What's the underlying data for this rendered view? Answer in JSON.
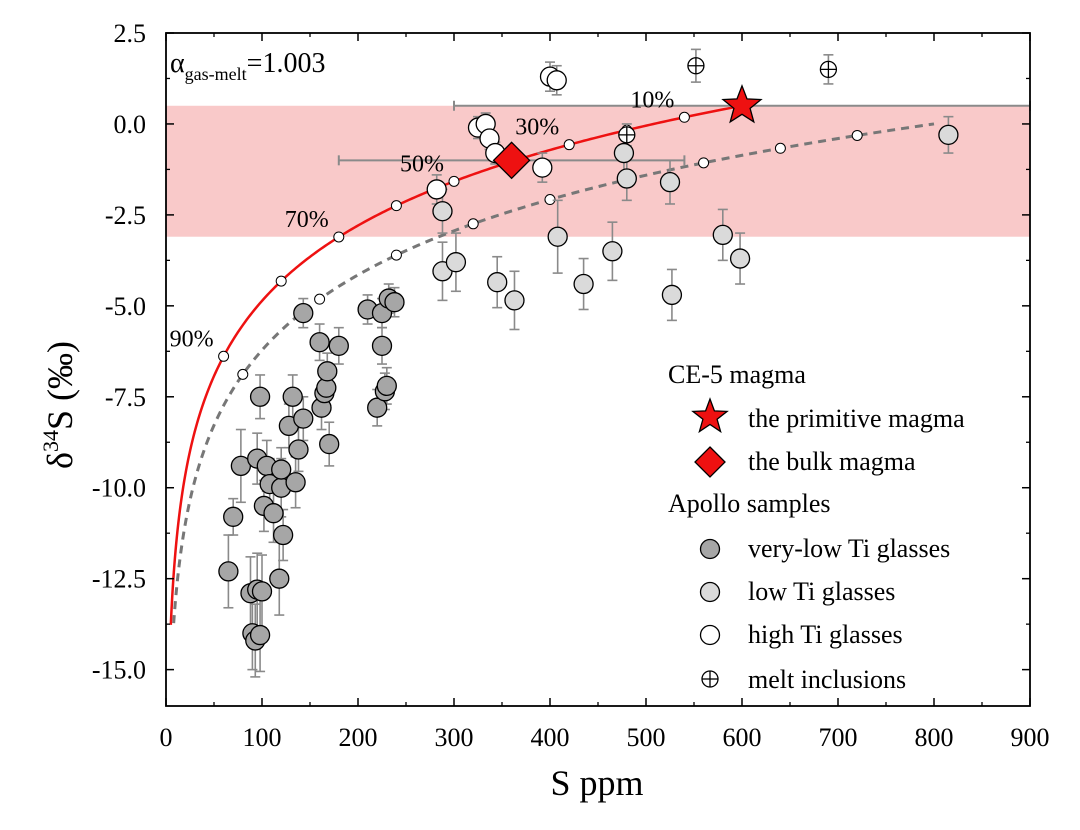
{
  "chart_data": {
    "type": "scatter",
    "xlabel": "S ppm",
    "ylabel": "δ34S (‰)",
    "ylabel_base": "δ",
    "ylabel_sup": "34",
    "ylabel_rest": "S (‰)",
    "xlim": [
      0,
      900
    ],
    "ylim": [
      -16,
      2.5
    ],
    "xticks": [
      0,
      100,
      200,
      300,
      400,
      500,
      600,
      700,
      800,
      900
    ],
    "xtick_labels": [
      "0",
      "100",
      "200",
      "300",
      "400",
      "500",
      "600",
      "700",
      "800",
      "900"
    ],
    "yticks": [
      2.5,
      0,
      -2.5,
      -5,
      -7.5,
      -10,
      -12.5,
      -15
    ],
    "ytick_labels": [
      "2.5",
      "0.0",
      "-2.5",
      "-5.0",
      "-7.5",
      "-10.0",
      "-12.5",
      "-15.0"
    ],
    "grid": false,
    "annotation": {
      "alpha": "α",
      "sub": "gas-melt",
      "value": "=1.003"
    },
    "band": {
      "y_min": -3.1,
      "y_max": 0.5,
      "color": "#f9c9c9"
    },
    "colors": {
      "red_curve": "#ee1111",
      "dashed_curve": "#777777",
      "errorbar": "#8a8a8a",
      "very_low_ti": "#a6a6a6",
      "low_ti": "#dadada",
      "high_ti": "#ffffff",
      "marker_red": "#ee1111"
    },
    "red_curve": {
      "s0": 600,
      "d0": 0.5,
      "alpha": 1.003,
      "fractions": [
        0.1,
        0.2,
        0.3,
        0.4,
        0.5,
        0.6,
        0.7,
        0.8,
        0.9
      ],
      "fraction_labels": [
        "10%",
        "30%",
        "50%",
        "70%",
        "90%"
      ],
      "fraction_label_values": [
        0.1,
        0.3,
        0.5,
        0.7,
        0.9
      ]
    },
    "dashed_curve": {
      "s0": 800,
      "d0": 0.0,
      "alpha": 1.003,
      "fractions": [
        0.1,
        0.2,
        0.3,
        0.4,
        0.5,
        0.6,
        0.7,
        0.8,
        0.9
      ]
    },
    "series": [
      {
        "name": "very-low Ti glasses",
        "points": [
          {
            "x": 65,
            "y": -12.3,
            "err": 1.0
          },
          {
            "x": 70,
            "y": -10.8,
            "err": 0.5
          },
          {
            "x": 78,
            "y": -9.4,
            "err": 1.0
          },
          {
            "x": 88,
            "y": -12.9,
            "err": 1.0
          },
          {
            "x": 90,
            "y": -14.0,
            "err": 1.0
          },
          {
            "x": 93,
            "y": -14.2,
            "err": 1.0
          },
          {
            "x": 95,
            "y": -12.8,
            "err": 1.0
          },
          {
            "x": 95,
            "y": -9.2,
            "err": 0.7
          },
          {
            "x": 98,
            "y": -14.05,
            "err": 1.0
          },
          {
            "x": 98,
            "y": -7.5,
            "err": 0.6
          },
          {
            "x": 100,
            "y": -12.85,
            "err": 1.0
          },
          {
            "x": 102,
            "y": -10.5,
            "err": 0.7
          },
          {
            "x": 105,
            "y": -9.4,
            "err": 0.7
          },
          {
            "x": 108,
            "y": -9.9,
            "err": 0.7
          },
          {
            "x": 112,
            "y": -10.7,
            "err": 0.8
          },
          {
            "x": 118,
            "y": -12.5,
            "err": 1.0
          },
          {
            "x": 120,
            "y": -10.0,
            "err": 0.8
          },
          {
            "x": 120,
            "y": -9.5,
            "err": 0.6
          },
          {
            "x": 122,
            "y": -11.3,
            "err": 0.7
          },
          {
            "x": 128,
            "y": -8.3,
            "err": 0.6
          },
          {
            "x": 132,
            "y": -7.5,
            "err": 0.6
          },
          {
            "x": 135,
            "y": -9.85,
            "err": 0.7
          },
          {
            "x": 138,
            "y": -8.95,
            "err": 0.6
          },
          {
            "x": 143,
            "y": -8.1,
            "err": 0.6
          },
          {
            "x": 143,
            "y": -5.2,
            "err": 0.4
          },
          {
            "x": 160,
            "y": -6.0,
            "err": 0.5
          },
          {
            "x": 162,
            "y": -7.8,
            "err": 0.6
          },
          {
            "x": 165,
            "y": -7.4,
            "err": 0.5
          },
          {
            "x": 167,
            "y": -7.25,
            "err": 0.5
          },
          {
            "x": 168,
            "y": -6.8,
            "err": 0.5
          },
          {
            "x": 170,
            "y": -8.8,
            "err": 0.6
          },
          {
            "x": 180,
            "y": -6.1,
            "err": 0.5
          },
          {
            "x": 210,
            "y": -5.1,
            "err": 0.4
          },
          {
            "x": 220,
            "y": -7.8,
            "err": 0.5
          },
          {
            "x": 225,
            "y": -6.1,
            "err": 0.5
          },
          {
            "x": 225,
            "y": -5.2,
            "err": 0.4
          },
          {
            "x": 228,
            "y": -7.35,
            "err": 0.5
          },
          {
            "x": 230,
            "y": -7.2,
            "err": 0.5
          },
          {
            "x": 232,
            "y": -4.8,
            "err": 0.4
          },
          {
            "x": 238,
            "y": -4.9,
            "err": 0.4
          }
        ]
      },
      {
        "name": "low Ti glasses",
        "points": [
          {
            "x": 288,
            "y": -2.4,
            "err": 0.6
          },
          {
            "x": 288,
            "y": -4.05,
            "err": 0.8
          },
          {
            "x": 302,
            "y": -3.8,
            "err": 0.8
          },
          {
            "x": 345,
            "y": -4.35,
            "err": 0.7
          },
          {
            "x": 363,
            "y": -4.85,
            "err": 0.8
          },
          {
            "x": 408,
            "y": -3.1,
            "err": 1.0
          },
          {
            "x": 435,
            "y": -4.4,
            "err": 0.7
          },
          {
            "x": 465,
            "y": -3.5,
            "err": 0.8
          },
          {
            "x": 477,
            "y": -0.8,
            "err": 0.6
          },
          {
            "x": 480,
            "y": -1.5,
            "err": 0.6
          },
          {
            "x": 525,
            "y": -1.6,
            "err": 0.6
          },
          {
            "x": 527,
            "y": -4.7,
            "err": 0.7
          },
          {
            "x": 580,
            "y": -3.05,
            "err": 0.7
          },
          {
            "x": 598,
            "y": -3.7,
            "err": 0.7
          },
          {
            "x": 815,
            "y": -0.3,
            "err": 0.5
          }
        ]
      },
      {
        "name": "high Ti glasses",
        "points": [
          {
            "x": 282,
            "y": -1.8,
            "err": 0.4
          },
          {
            "x": 325,
            "y": -0.1,
            "err": 0.3
          },
          {
            "x": 333,
            "y": 0.0,
            "err": 0.3
          },
          {
            "x": 337,
            "y": -0.4,
            "err": 0.3
          },
          {
            "x": 343,
            "y": -0.8,
            "err": 0.3
          },
          {
            "x": 392,
            "y": -1.2,
            "err": 0.4
          },
          {
            "x": 400,
            "y": 1.3,
            "err": 0.4
          },
          {
            "x": 407,
            "y": 1.2,
            "err": 0.4
          }
        ]
      },
      {
        "name": "melt inclusions",
        "points": [
          {
            "x": 480,
            "y": -0.3,
            "err": 0.3
          },
          {
            "x": 552,
            "y": 1.6,
            "err": 0.45
          },
          {
            "x": 690,
            "y": 1.5,
            "err": 0.4
          }
        ]
      }
    ],
    "primitive": {
      "x": 600,
      "y": 0.5,
      "xerr": [
        300,
        900
      ]
    },
    "bulk": {
      "x": 360,
      "y": -1.0,
      "xerr": [
        180,
        540
      ]
    },
    "legend": {
      "position": "bottom-right",
      "group1": "CE-5 magma",
      "star": "the primitive magma",
      "diamond": "the bulk magma",
      "group2": "Apollo samples",
      "very_low": "very-low Ti glasses",
      "low": "low Ti glasses",
      "high": "high Ti glasses",
      "inclusions": "melt inclusions"
    }
  }
}
